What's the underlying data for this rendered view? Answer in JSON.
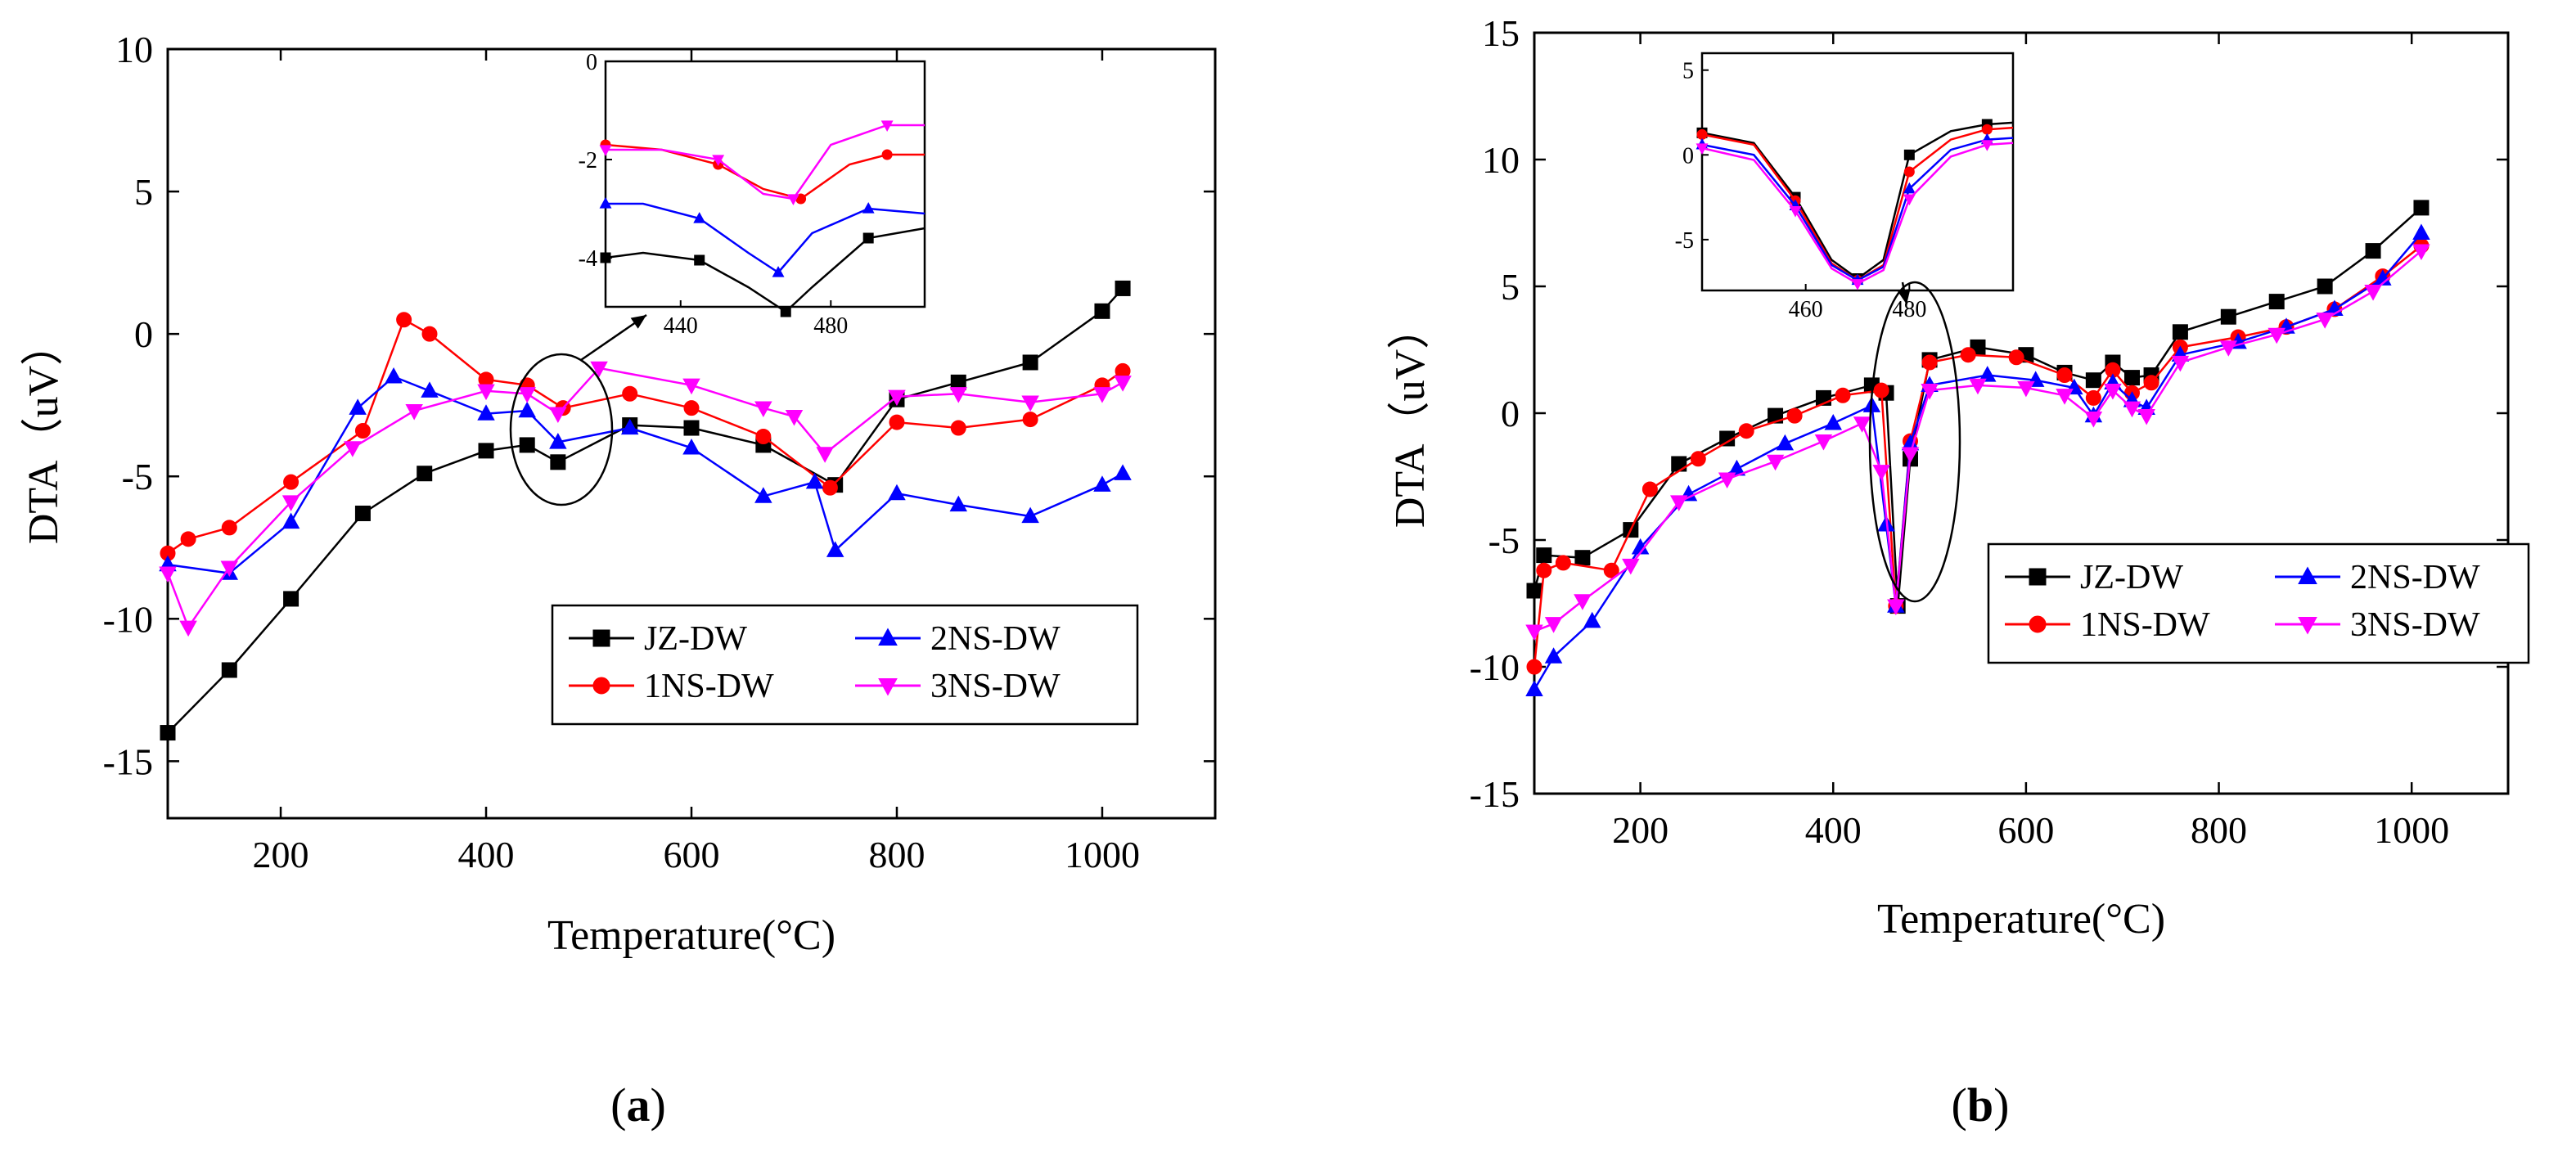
{
  "figure": {
    "panel_labels": {
      "a_open": "(",
      "a_letter": "a",
      "a_close": ")",
      "b_open": "(",
      "b_letter": "b",
      "b_close": ")"
    }
  },
  "colors": {
    "JZ-DW": "#000000",
    "1NS-DW": "#ff0000",
    "2NS-DW": "#0000ff",
    "3NS-DW": "#ff00ff"
  },
  "chart_data": [
    {
      "panel": "a",
      "type": "line",
      "xlabel": "Temperature(°C)",
      "ylabel": "DTA（uV）",
      "xlim": [
        90,
        1110
      ],
      "ylim": [
        -17,
        10
      ],
      "xticks": [
        200,
        400,
        600,
        800,
        1000
      ],
      "yticks": [
        10,
        5,
        0,
        -5,
        -10,
        -15
      ],
      "legend_position": "bottom-right",
      "legend_order": [
        "JZ-DW",
        "2NS-DW",
        "1NS-DW",
        "3NS-DW"
      ],
      "series": [
        {
          "name": "JZ-DW",
          "marker": "square",
          "x": [
            90,
            150,
            210,
            280,
            340,
            400,
            440,
            470,
            540,
            600,
            670,
            740,
            800,
            860,
            930,
            1000,
            1020
          ],
          "y": [
            -14,
            -11.8,
            -9.3,
            -6.3,
            -4.9,
            -4.1,
            -3.9,
            -4.5,
            -3.2,
            -3.3,
            -3.9,
            -5.3,
            -2.3,
            -1.7,
            -1,
            0.8,
            1.6
          ]
        },
        {
          "name": "1NS-DW",
          "marker": "circle",
          "x": [
            90,
            110,
            150,
            210,
            280,
            320,
            345,
            400,
            440,
            475,
            540,
            600,
            670,
            735,
            800,
            860,
            930,
            1000,
            1020
          ],
          "y": [
            -7.7,
            -7.2,
            -6.8,
            -5.2,
            -3.4,
            0.5,
            0,
            -1.6,
            -1.8,
            -2.6,
            -2.1,
            -2.6,
            -3.6,
            -5.4,
            -3.1,
            -3.3,
            -3.0,
            -1.8,
            -1.3
          ]
        },
        {
          "name": "2NS-DW",
          "marker": "triangle-up",
          "x": [
            90,
            150,
            210,
            275,
            310,
            345,
            400,
            440,
            470,
            540,
            600,
            670,
            720,
            740,
            800,
            860,
            930,
            1000,
            1020
          ],
          "y": [
            -8.1,
            -8.4,
            -6.6,
            -2.6,
            -1.5,
            -2.0,
            -2.8,
            -2.7,
            -3.8,
            -3.3,
            -4.0,
            -5.7,
            -5.2,
            -7.6,
            -5.6,
            -6.0,
            -6.4,
            -5.3,
            -4.9
          ]
        },
        {
          "name": "3NS-DW",
          "marker": "triangle-down",
          "x": [
            90,
            110,
            150,
            210,
            270,
            330,
            400,
            440,
            470,
            510,
            600,
            670,
            700,
            730,
            800,
            860,
            930,
            1000,
            1020
          ],
          "y": [
            -8.4,
            -10.3,
            -8.2,
            -5.9,
            -4.0,
            -2.7,
            -2.0,
            -2.1,
            -2.8,
            -1.2,
            -1.8,
            -2.6,
            -2.9,
            -4.2,
            -2.2,
            -2.1,
            -2.4,
            -2.1,
            -1.7
          ]
        }
      ],
      "inset": {
        "xlim": [
          420,
          505
        ],
        "ylim": [
          -5,
          0
        ],
        "xticks": [
          440,
          480
        ],
        "yticks": [
          0,
          -2,
          -4
        ],
        "series": [
          {
            "name": "JZ-DW",
            "x": [
              420,
              430,
              445,
              458,
              468,
              475,
              490,
              505
            ],
            "y": [
              -4,
              -3.9,
              -4.05,
              -4.6,
              -5.1,
              -4.6,
              -3.6,
              -3.4
            ]
          },
          {
            "name": "1NS-DW",
            "x": [
              420,
              435,
              450,
              462,
              472,
              485,
              495,
              505
            ],
            "y": [
              -1.7,
              -1.8,
              -2.1,
              -2.6,
              -2.8,
              -2.1,
              -1.9,
              -1.9
            ]
          },
          {
            "name": "2NS-DW",
            "x": [
              420,
              430,
              445,
              458,
              466,
              475,
              490,
              505
            ],
            "y": [
              -2.9,
              -2.9,
              -3.2,
              -3.9,
              -4.3,
              -3.5,
              -3.0,
              -3.1
            ]
          },
          {
            "name": "3NS-DW",
            "x": [
              420,
              435,
              450,
              462,
              470,
              480,
              495,
              505
            ],
            "y": [
              -1.8,
              -1.8,
              -2.0,
              -2.7,
              -2.8,
              -1.7,
              -1.3,
              -1.3
            ]
          }
        ]
      }
    },
    {
      "panel": "b",
      "type": "line",
      "xlabel": "Temperature(°C)",
      "ylabel": "DTA（uV）",
      "xlim": [
        90,
        1100
      ],
      "ylim": [
        -15,
        15
      ],
      "xticks": [
        200,
        400,
        600,
        800,
        1000
      ],
      "yticks": [
        15,
        10,
        5,
        0,
        -5,
        -10,
        -15
      ],
      "legend_position": "center-right",
      "legend_order": [
        "JZ-DW",
        "2NS-DW",
        "1NS-DW",
        "3NS-DW"
      ],
      "series": [
        {
          "name": "JZ-DW",
          "marker": "square",
          "x": [
            90,
            100,
            140,
            190,
            240,
            290,
            340,
            390,
            440,
            455,
            467,
            480,
            500,
            550,
            600,
            640,
            670,
            690,
            710,
            730,
            760,
            810,
            860,
            910,
            960,
            1010
          ],
          "y": [
            -7,
            -5.6,
            -5.7,
            -4.6,
            -2.0,
            -1.0,
            -0.1,
            0.6,
            1.1,
            0.8,
            -7.6,
            -1.8,
            2.1,
            2.6,
            2.3,
            1.6,
            1.3,
            2.0,
            1.4,
            1.5,
            3.2,
            3.8,
            4.4,
            5.0,
            6.4,
            8.1
          ]
        },
        {
          "name": "1NS-DW",
          "marker": "circle",
          "x": [
            90,
            100,
            120,
            170,
            210,
            260,
            310,
            360,
            410,
            450,
            465,
            480,
            500,
            540,
            590,
            640,
            670,
            690,
            710,
            730,
            760,
            820,
            870,
            920,
            970,
            1010
          ],
          "y": [
            -10,
            -6.2,
            -5.9,
            -6.2,
            -3.0,
            -1.8,
            -0.7,
            -0.1,
            0.7,
            0.9,
            -7.6,
            -1.1,
            2.0,
            2.3,
            2.2,
            1.5,
            0.6,
            1.7,
            0.8,
            1.2,
            2.6,
            3.0,
            3.4,
            4.1,
            5.4,
            6.6
          ]
        },
        {
          "name": "2NS-DW",
          "marker": "triangle-up",
          "x": [
            90,
            110,
            150,
            200,
            250,
            300,
            350,
            400,
            440,
            455,
            465,
            480,
            500,
            560,
            610,
            650,
            670,
            690,
            710,
            725,
            760,
            820,
            870,
            920,
            970,
            1010
          ],
          "y": [
            -10.9,
            -9.6,
            -8.2,
            -5.3,
            -3.2,
            -2.2,
            -1.2,
            -0.4,
            0.3,
            -4.4,
            -7.6,
            -1.2,
            1.1,
            1.5,
            1.3,
            1.0,
            -0.1,
            1.2,
            0.5,
            0.2,
            2.3,
            2.8,
            3.4,
            4.1,
            5.3,
            7.1
          ]
        },
        {
          "name": "3NS-DW",
          "marker": "triangle-down",
          "x": [
            90,
            110,
            140,
            190,
            240,
            290,
            340,
            390,
            430,
            450,
            465,
            480,
            500,
            550,
            600,
            640,
            670,
            690,
            710,
            725,
            760,
            810,
            860,
            910,
            960,
            1010
          ],
          "y": [
            -8.6,
            -8.3,
            -7.4,
            -6.0,
            -3.5,
            -2.6,
            -1.9,
            -1.1,
            -0.4,
            -2.3,
            -7.6,
            -1.6,
            0.9,
            1.1,
            1.0,
            0.7,
            -0.2,
            0.9,
            0.2,
            -0.1,
            2.0,
            2.6,
            3.1,
            3.7,
            4.8,
            6.4
          ]
        }
      ],
      "inset": {
        "xlim": [
          440,
          500
        ],
        "ylim": [
          -8,
          6
        ],
        "xticks": [
          460,
          480
        ],
        "yticks": [
          5,
          0,
          -5
        ],
        "series": [
          {
            "name": "JZ-DW",
            "x": [
              440,
              450,
              458,
              465,
              470,
              475,
              480,
              488,
              495,
              500
            ],
            "y": [
              1.3,
              0.7,
              -2.5,
              -6.2,
              -7.3,
              -6.2,
              0.0,
              1.4,
              1.8,
              1.9
            ]
          },
          {
            "name": "1NS-DW",
            "x": [
              440,
              450,
              458,
              465,
              470,
              475,
              480,
              488,
              495,
              500
            ],
            "y": [
              1.2,
              0.6,
              -2.7,
              -6.4,
              -7.4,
              -6.5,
              -1.0,
              0.9,
              1.5,
              1.6
            ]
          },
          {
            "name": "2NS-DW",
            "x": [
              440,
              450,
              458,
              465,
              470,
              475,
              480,
              488,
              495,
              500
            ],
            "y": [
              0.6,
              0.0,
              -3.0,
              -6.5,
              -7.4,
              -6.6,
              -2.0,
              0.3,
              0.9,
              1.0
            ]
          },
          {
            "name": "3NS-DW",
            "x": [
              440,
              450,
              458,
              465,
              470,
              475,
              480,
              488,
              495,
              500
            ],
            "y": [
              0.4,
              -0.3,
              -3.3,
              -6.7,
              -7.6,
              -6.8,
              -2.6,
              -0.1,
              0.6,
              0.7
            ]
          }
        ]
      }
    }
  ]
}
